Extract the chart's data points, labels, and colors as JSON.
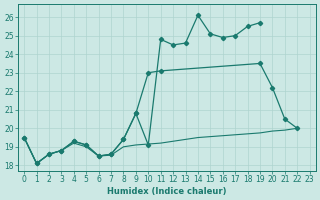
{
  "xlabel": "Humidex (Indice chaleur)",
  "color": "#1a7a6e",
  "bg_color": "#cce8e4",
  "grid_color": "#afd4cf",
  "ylim": [
    17.7,
    26.7
  ],
  "xlim": [
    -0.5,
    23.5
  ],
  "yticks": [
    18,
    19,
    20,
    21,
    22,
    23,
    24,
    25,
    26
  ],
  "xticks": [
    0,
    1,
    2,
    3,
    4,
    5,
    6,
    7,
    8,
    9,
    10,
    11,
    12,
    13,
    14,
    15,
    16,
    17,
    18,
    19,
    20,
    21,
    22,
    23
  ],
  "line1_x": [
    0,
    1,
    2,
    3,
    4,
    5,
    6,
    7,
    8,
    9,
    10,
    11,
    12,
    13,
    14,
    15,
    16,
    17,
    18,
    19
  ],
  "line1_y": [
    19.5,
    18.1,
    18.6,
    18.8,
    19.3,
    19.1,
    18.5,
    18.6,
    19.4,
    20.8,
    19.1,
    24.8,
    24.5,
    24.6,
    26.1,
    25.1,
    24.9,
    25.0,
    25.5,
    25.7
  ],
  "line2_x": [
    0,
    1,
    2,
    3,
    4,
    5,
    6,
    7,
    8,
    9,
    10,
    11,
    19,
    20,
    21,
    22
  ],
  "line2_y": [
    19.5,
    18.1,
    18.6,
    18.8,
    19.3,
    19.1,
    18.5,
    18.6,
    19.4,
    20.8,
    23.0,
    23.1,
    23.5,
    22.2,
    20.5,
    20.0
  ],
  "line3_x": [
    0,
    1,
    2,
    3,
    4,
    5,
    6,
    7,
    8,
    9,
    10,
    11,
    12,
    13,
    14,
    15,
    16,
    17,
    18,
    19,
    20,
    21,
    22
  ],
  "line3_y": [
    19.5,
    18.1,
    18.6,
    18.8,
    19.2,
    19.0,
    18.5,
    18.55,
    19.0,
    19.1,
    19.15,
    19.2,
    19.3,
    19.4,
    19.5,
    19.55,
    19.6,
    19.65,
    19.7,
    19.75,
    19.85,
    19.9,
    20.0
  ]
}
